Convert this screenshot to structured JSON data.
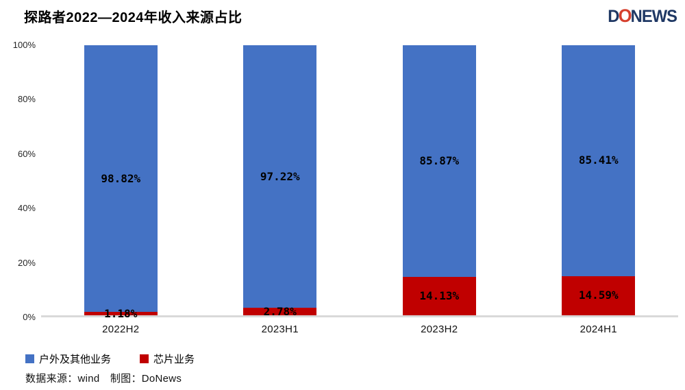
{
  "page": {
    "title": "探路者2022—2024年收入来源占比"
  },
  "logo": {
    "part_d": "D",
    "part_o": "O",
    "part_news": "NEWS",
    "navy_color": "#1f3864",
    "red_color": "#d6402e"
  },
  "chart_data": {
    "type": "bar",
    "stacked": true,
    "title": "探路者2022—2024年收入来源占比",
    "categories": [
      "2022H2",
      "2023H1",
      "2023H2",
      "2024H1"
    ],
    "series": [
      {
        "name": "户外及其他业务",
        "color": "#4472C4",
        "values": [
          98.82,
          97.22,
          85.87,
          85.41
        ]
      },
      {
        "name": "芯片业务",
        "color": "#C00000",
        "values": [
          1.18,
          2.78,
          14.13,
          14.59
        ]
      }
    ],
    "value_suffix": "%",
    "xlabel": "",
    "ylabel": "",
    "ylim": [
      0,
      100
    ],
    "yticks": [
      {
        "value": 0,
        "label": "0%"
      },
      {
        "value": 20,
        "label": "20%"
      },
      {
        "value": 40,
        "label": "40%"
      },
      {
        "value": 60,
        "label": "60%"
      },
      {
        "value": 80,
        "label": "80%"
      },
      {
        "value": 100,
        "label": "100%"
      }
    ],
    "grid": false,
    "legend_position": "bottom-left",
    "axis_line_color": "#d9d9d9"
  },
  "legend": {
    "items": [
      {
        "label": "户外及其他业务",
        "color": "#4472C4"
      },
      {
        "label": "芯片业务",
        "color": "#C00000"
      }
    ]
  },
  "footer": {
    "source_text": "数据来源：wind　制图：DoNews"
  }
}
